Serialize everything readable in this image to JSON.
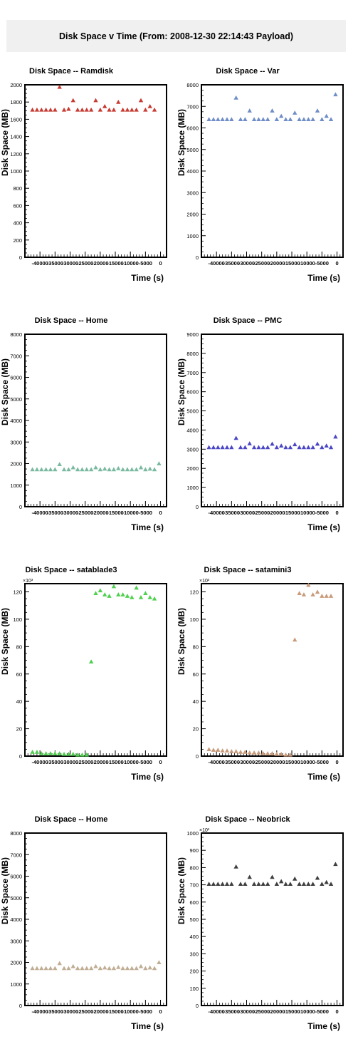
{
  "page_title": "Disk Space v Time (From: 2008-12-30 22:14:43 Payload)",
  "chart_data": [
    {
      "type": "scatter",
      "title": "Disk Space -- Ramdisk",
      "xlabel": "Time (s)",
      "ylabel": "Disk Space (MB)",
      "xlim": [
        -45000,
        2000
      ],
      "ylim": [
        0,
        2000
      ],
      "x_ticks": [
        -40000,
        -35000,
        -30000,
        -25000,
        -20000,
        -15000,
        -10000,
        -5000,
        0
      ],
      "x_tick_labels": [
        "-40000",
        "-35000",
        "-30000",
        "-25000",
        "-20000",
        "-15000",
        "-10000",
        "-5000",
        "0"
      ],
      "y_ticks": [
        0,
        200,
        400,
        600,
        800,
        1000,
        1200,
        1400,
        1600,
        1800,
        2000
      ],
      "y_tick_labels": [
        "0",
        "200",
        "400",
        "600",
        "800",
        "1000",
        "1200",
        "1400",
        "1600",
        "1800",
        "2000"
      ],
      "color": "#c83a32",
      "x": [
        -42500,
        -41000,
        -39500,
        -38000,
        -36500,
        -35000,
        -33500,
        -32000,
        -30500,
        -29000,
        -27500,
        -26000,
        -24500,
        -23000,
        -21500,
        -20000,
        -18500,
        -17000,
        -15500,
        -14000,
        -12500,
        -11000,
        -9500,
        -8000,
        -6500,
        -5000,
        -3500,
        -2000
      ],
      "y": [
        1710,
        1710,
        1710,
        1710,
        1710,
        1710,
        1975,
        1710,
        1720,
        1820,
        1710,
        1710,
        1710,
        1710,
        1820,
        1710,
        1750,
        1710,
        1710,
        1800,
        1710,
        1710,
        1710,
        1710,
        1820,
        1710,
        1750,
        1710
      ]
    },
    {
      "type": "scatter",
      "title": "Disk Space -- Var",
      "xlabel": "Time (s)",
      "ylabel": "Disk Space (MB)",
      "xlim": [
        -45000,
        2000
      ],
      "ylim": [
        0,
        8000
      ],
      "x_ticks": [
        -40000,
        -35000,
        -30000,
        -25000,
        -20000,
        -15000,
        -10000,
        -5000,
        0
      ],
      "x_tick_labels": [
        "-40000",
        "-35000",
        "-30000",
        "-25000",
        "-20000",
        "-15000",
        "-10000",
        "-5000",
        "0"
      ],
      "y_ticks": [
        0,
        1000,
        2000,
        3000,
        4000,
        5000,
        6000,
        7000,
        8000
      ],
      "y_tick_labels": [
        "0",
        "1000",
        "2000",
        "3000",
        "4000",
        "5000",
        "6000",
        "7000",
        "8000"
      ],
      "color": "#6f8dc6",
      "x": [
        -42500,
        -41000,
        -39500,
        -38000,
        -36500,
        -35000,
        -33500,
        -32000,
        -30500,
        -29000,
        -27500,
        -26000,
        -24500,
        -23000,
        -21500,
        -20000,
        -18500,
        -17000,
        -15500,
        -14000,
        -12500,
        -11000,
        -9500,
        -8000,
        -6500,
        -5000,
        -3500,
        -2000,
        -500
      ],
      "y": [
        6400,
        6400,
        6400,
        6400,
        6400,
        6400,
        7400,
        6400,
        6400,
        6800,
        6400,
        6400,
        6400,
        6400,
        6800,
        6400,
        6550,
        6400,
        6400,
        6700,
        6400,
        6400,
        6400,
        6400,
        6800,
        6400,
        6550,
        6400,
        7550
      ]
    },
    {
      "type": "scatter",
      "title": "Disk Space -- Home",
      "xlabel": "Time (s)",
      "ylabel": "Disk Space (MB)",
      "xlim": [
        -45000,
        2000
      ],
      "ylim": [
        0,
        8000
      ],
      "x_ticks": [
        -40000,
        -35000,
        -30000,
        -25000,
        -20000,
        -15000,
        -10000,
        -5000,
        0
      ],
      "x_tick_labels": [
        "-40000",
        "-35000",
        "-30000",
        "-25000",
        "-20000",
        "-15000",
        "-10000",
        "-5000",
        "0"
      ],
      "y_ticks": [
        0,
        1000,
        2000,
        3000,
        4000,
        5000,
        6000,
        7000,
        8000
      ],
      "y_tick_labels": [
        "0",
        "1000",
        "2000",
        "3000",
        "4000",
        "5000",
        "6000",
        "7000",
        "8000"
      ],
      "color": "#79b9a0",
      "x": [
        -42500,
        -41000,
        -39500,
        -38000,
        -36500,
        -35000,
        -33500,
        -32000,
        -30500,
        -29000,
        -27500,
        -26000,
        -24500,
        -23000,
        -21500,
        -20000,
        -18500,
        -17000,
        -15500,
        -14000,
        -12500,
        -11000,
        -9500,
        -8000,
        -6500,
        -5000,
        -3500,
        -2000,
        -500
      ],
      "y": [
        1730,
        1730,
        1730,
        1730,
        1730,
        1730,
        1970,
        1730,
        1730,
        1820,
        1730,
        1730,
        1730,
        1730,
        1820,
        1730,
        1760,
        1730,
        1730,
        1780,
        1730,
        1730,
        1730,
        1730,
        1820,
        1730,
        1760,
        1730,
        2000
      ]
    },
    {
      "type": "scatter",
      "title": "Disk Space -- PMC",
      "xlabel": "Time (s)",
      "ylabel": "Disk Space (MB)",
      "xlim": [
        -45000,
        2000
      ],
      "ylim": [
        0,
        9000
      ],
      "x_ticks": [
        -40000,
        -35000,
        -30000,
        -25000,
        -20000,
        -15000,
        -10000,
        -5000,
        0
      ],
      "x_tick_labels": [
        "-40000",
        "-35000",
        "-30000",
        "-25000",
        "-20000",
        "-15000",
        "-10000",
        "-5000",
        "0"
      ],
      "y_ticks": [
        0,
        1000,
        2000,
        3000,
        4000,
        5000,
        6000,
        7000,
        8000,
        9000
      ],
      "y_tick_labels": [
        "0",
        "1000",
        "2000",
        "3000",
        "4000",
        "5000",
        "6000",
        "7000",
        "8000",
        "9000"
      ],
      "color": "#4a46c4",
      "x": [
        -42500,
        -41000,
        -39500,
        -38000,
        -36500,
        -35000,
        -33500,
        -32000,
        -30500,
        -29000,
        -27500,
        -26000,
        -24500,
        -23000,
        -21500,
        -20000,
        -18500,
        -17000,
        -15500,
        -14000,
        -12500,
        -11000,
        -9500,
        -8000,
        -6500,
        -5000,
        -3500,
        -2000,
        -500
      ],
      "y": [
        3100,
        3100,
        3100,
        3100,
        3100,
        3100,
        3580,
        3100,
        3100,
        3300,
        3100,
        3100,
        3100,
        3100,
        3280,
        3100,
        3180,
        3100,
        3100,
        3250,
        3100,
        3100,
        3100,
        3100,
        3280,
        3100,
        3180,
        3100,
        3650
      ]
    },
    {
      "type": "scatter",
      "title": "Disk Space -- satablade3",
      "xlabel": "Time (s)",
      "ylabel": "Disk Space (MB)",
      "multiplier_label": "×10³",
      "xlim": [
        -45000,
        2000
      ],
      "ylim": [
        0,
        126
      ],
      "x_ticks": [
        -40000,
        -35000,
        -30000,
        -25000,
        -20000,
        -15000,
        -10000,
        -5000,
        0
      ],
      "x_tick_labels": [
        "-40000",
        "-35000",
        "-30000",
        "-25000",
        "-20000",
        "-15000",
        "-10000",
        "-5000",
        "0"
      ],
      "y_ticks": [
        0,
        20,
        40,
        60,
        80,
        100,
        120
      ],
      "y_tick_labels": [
        "0",
        "20",
        "40",
        "60",
        "80",
        "100",
        "120"
      ],
      "color": "#4fd04f",
      "x": [
        -42500,
        -41000,
        -39500,
        -38000,
        -36500,
        -35000,
        -33500,
        -32000,
        -30500,
        -29000,
        -27500,
        -26000,
        -24500,
        -23000,
        -21500,
        -20000,
        -18500,
        -17000,
        -15500,
        -14000,
        -12500,
        -11000,
        -9500,
        -8000,
        -6500,
        -5000,
        -3500,
        -2000
      ],
      "y": [
        3,
        3,
        2,
        2,
        2,
        2,
        2,
        1.5,
        1.5,
        1.5,
        1,
        1,
        1,
        69,
        119,
        121,
        118,
        117,
        124,
        118,
        118,
        117,
        116,
        123,
        116,
        119,
        116,
        115
      ]
    },
    {
      "type": "scatter",
      "title": "Disk Space -- satamini3",
      "xlabel": "Time (s)",
      "ylabel": "Disk Space (MB)",
      "multiplier_label": "×10³",
      "xlim": [
        -45000,
        2000
      ],
      "ylim": [
        0,
        126
      ],
      "x_ticks": [
        -40000,
        -35000,
        -30000,
        -25000,
        -20000,
        -15000,
        -10000,
        -5000,
        0
      ],
      "x_tick_labels": [
        "-40000",
        "-35000",
        "-30000",
        "-25000",
        "-20000",
        "-15000",
        "-10000",
        "-5000",
        "0"
      ],
      "y_ticks": [
        0,
        20,
        40,
        60,
        80,
        100,
        120
      ],
      "y_tick_labels": [
        "0",
        "20",
        "40",
        "60",
        "80",
        "100",
        "120"
      ],
      "color": "#c99b7a",
      "x": [
        -42500,
        -41000,
        -39500,
        -38000,
        -36500,
        -35000,
        -33500,
        -32000,
        -30500,
        -29000,
        -27500,
        -26000,
        -24500,
        -23000,
        -21500,
        -20000,
        -18500,
        -17000,
        -15500,
        -14000,
        -12500,
        -11000,
        -9500,
        -8000,
        -6500,
        -5000,
        -3500,
        -2000
      ],
      "y": [
        5,
        4.5,
        4.5,
        4,
        4,
        3.5,
        3.5,
        3,
        3,
        2.5,
        2.5,
        2.5,
        2,
        2,
        2,
        1.5,
        1.5,
        1,
        1,
        85,
        119,
        118,
        125,
        118,
        120,
        117,
        117,
        117
      ]
    },
    {
      "type": "scatter",
      "title": "Disk Space -- Home",
      "xlabel": "Time (s)",
      "ylabel": "Disk Space (MB)",
      "xlim": [
        -45000,
        2000
      ],
      "ylim": [
        0,
        8000
      ],
      "x_ticks": [
        -40000,
        -35000,
        -30000,
        -25000,
        -20000,
        -15000,
        -10000,
        -5000,
        0
      ],
      "x_tick_labels": [
        "-40000",
        "-35000",
        "-30000",
        "-25000",
        "-20000",
        "-15000",
        "-10000",
        "-5000",
        "0"
      ],
      "y_ticks": [
        0,
        1000,
        2000,
        3000,
        4000,
        5000,
        6000,
        7000,
        8000
      ],
      "y_tick_labels": [
        "0",
        "1000",
        "2000",
        "3000",
        "4000",
        "5000",
        "6000",
        "7000",
        "8000"
      ],
      "color": "#c0ad94",
      "x": [
        -42500,
        -41000,
        -39500,
        -38000,
        -36500,
        -35000,
        -33500,
        -32000,
        -30500,
        -29000,
        -27500,
        -26000,
        -24500,
        -23000,
        -21500,
        -20000,
        -18500,
        -17000,
        -15500,
        -14000,
        -12500,
        -11000,
        -9500,
        -8000,
        -6500,
        -5000,
        -3500,
        -2000,
        -500
      ],
      "y": [
        1730,
        1730,
        1730,
        1730,
        1730,
        1730,
        1960,
        1730,
        1730,
        1820,
        1730,
        1730,
        1730,
        1730,
        1820,
        1730,
        1760,
        1730,
        1730,
        1780,
        1730,
        1730,
        1730,
        1730,
        1820,
        1730,
        1760,
        1730,
        2000
      ]
    },
    {
      "type": "scatter",
      "title": "Disk Space -- Neobrick",
      "xlabel": "Time (s)",
      "ylabel": "Disk Space (MB)",
      "multiplier_label": "×10³",
      "xlim": [
        -45000,
        2000
      ],
      "ylim": [
        0,
        1000
      ],
      "x_ticks": [
        -40000,
        -35000,
        -30000,
        -25000,
        -20000,
        -15000,
        -10000,
        -5000,
        0
      ],
      "x_tick_labels": [
        "-40000",
        "-35000",
        "-30000",
        "-25000",
        "-20000",
        "-15000",
        "-10000",
        "-5000",
        "0"
      ],
      "y_ticks": [
        0,
        100,
        200,
        300,
        400,
        500,
        600,
        700,
        800,
        900,
        1000
      ],
      "y_tick_labels": [
        "0",
        "100",
        "200",
        "300",
        "400",
        "500",
        "600",
        "700",
        "800",
        "900",
        "1000"
      ],
      "color": "#3e3e3e",
      "x": [
        -42500,
        -41000,
        -39500,
        -38000,
        -36500,
        -35000,
        -33500,
        -32000,
        -30500,
        -29000,
        -27500,
        -26000,
        -24500,
        -23000,
        -21500,
        -20000,
        -18500,
        -17000,
        -15500,
        -14000,
        -12500,
        -11000,
        -9500,
        -8000,
        -6500,
        -5000,
        -3500,
        -2000,
        -500
      ],
      "y": [
        705,
        705,
        705,
        705,
        705,
        705,
        805,
        705,
        705,
        745,
        705,
        705,
        705,
        705,
        745,
        705,
        720,
        705,
        705,
        735,
        705,
        705,
        705,
        705,
        740,
        705,
        715,
        705,
        820
      ]
    }
  ]
}
